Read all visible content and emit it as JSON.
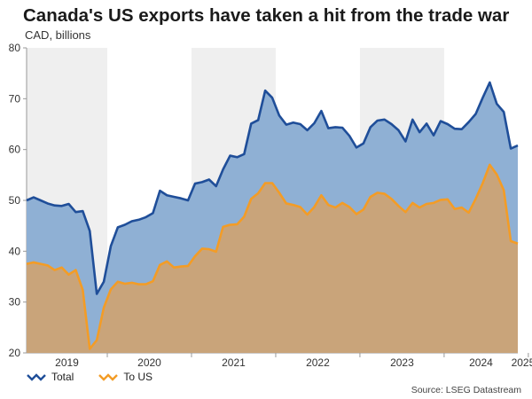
{
  "header": {
    "title": "Canada's US exports have taken a hit from the trade war",
    "subtitle": "CAD, billions"
  },
  "source": "Source: LSEG Datastream",
  "chart_data": {
    "type": "area",
    "ylim": [
      20,
      80
    ],
    "yticks": [
      20,
      30,
      40,
      50,
      60,
      70,
      80
    ],
    "x_start": "2019-01",
    "x_end": "2025-05",
    "year_labels": [
      "2019",
      "2020",
      "2021",
      "2022",
      "2023",
      "2024",
      "2025"
    ],
    "shaded_years": [
      "2019",
      "2021",
      "2023",
      "2025"
    ],
    "grid": false,
    "legend_position": "bottom-left",
    "series": [
      {
        "name": "Total",
        "color": "#1f4e99",
        "fill": "#8fb0d4",
        "values": [
          50.0,
          50.6,
          50.0,
          49.4,
          49.0,
          48.9,
          49.3,
          47.7,
          47.9,
          44.0,
          31.6,
          34.0,
          41.0,
          44.7,
          45.2,
          45.9,
          46.2,
          46.7,
          47.5,
          51.9,
          51.0,
          50.7,
          50.4,
          50.0,
          53.3,
          53.6,
          54.1,
          52.8,
          56.1,
          58.8,
          58.5,
          59.1,
          65.1,
          65.8,
          71.6,
          70.2,
          66.7,
          64.9,
          65.3,
          65.0,
          63.8,
          65.2,
          67.6,
          64.2,
          64.4,
          64.3,
          62.7,
          60.4,
          61.2,
          64.4,
          65.7,
          65.9,
          65.0,
          63.8,
          61.6,
          65.9,
          63.4,
          65.1,
          62.8,
          65.6,
          65.0,
          64.1,
          64.0,
          65.4,
          67.0,
          70.2,
          73.2,
          69.0,
          67.4,
          60.2,
          60.8
        ]
      },
      {
        "name": "To US",
        "color": "#f39c26",
        "fill": "#c9a47a",
        "values": [
          37.5,
          37.8,
          37.5,
          37.2,
          36.3,
          36.8,
          35.4,
          36.3,
          32.4,
          20.8,
          22.5,
          28.9,
          32.5,
          34.0,
          33.6,
          33.8,
          33.5,
          33.5,
          34.1,
          37.3,
          38.0,
          36.8,
          37.0,
          37.1,
          39.0,
          40.5,
          40.4,
          39.9,
          44.8,
          45.2,
          45.3,
          46.8,
          50.3,
          51.4,
          53.4,
          53.4,
          51.5,
          49.4,
          49.1,
          48.7,
          47.2,
          48.7,
          51.0,
          49.1,
          48.6,
          49.5,
          48.7,
          47.3,
          48.2,
          50.7,
          51.5,
          51.3,
          50.3,
          48.9,
          47.7,
          49.5,
          48.6,
          49.3,
          49.5,
          50.1,
          50.2,
          48.3,
          48.6,
          47.6,
          50.3,
          53.4,
          57.0,
          55.1,
          52.0,
          42.0,
          41.5
        ]
      }
    ]
  }
}
